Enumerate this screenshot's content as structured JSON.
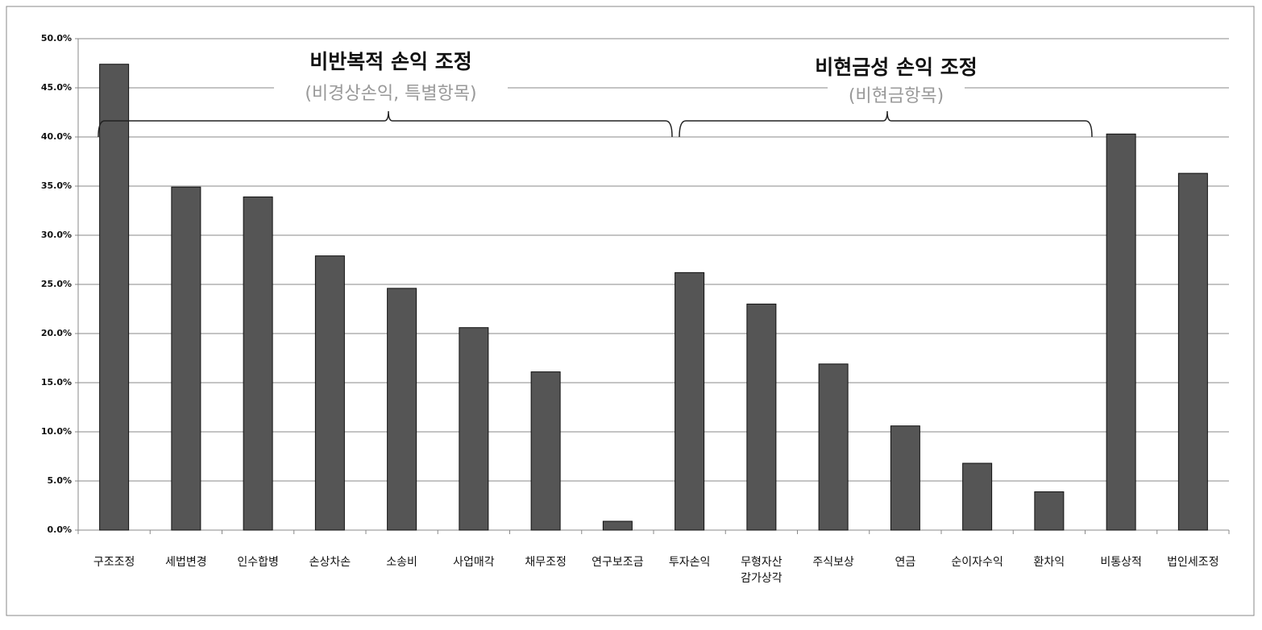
{
  "chart_data": {
    "type": "bar",
    "categories": [
      "구조조정",
      "세법변경",
      "인수합병",
      "손상차손",
      "소송비",
      "사업매각",
      "채무조정",
      "연구보조금",
      "투자손익",
      "무형자산\n감가상각",
      "주식보상",
      "연금",
      "순이자수익",
      "환차익",
      "비통상적",
      "법인세조정"
    ],
    "values": [
      47.4,
      34.9,
      33.9,
      27.9,
      24.6,
      20.6,
      16.1,
      0.9,
      26.2,
      23.0,
      16.9,
      10.6,
      6.8,
      3.9,
      40.3,
      36.3
    ],
    "color": "#555555",
    "ylim": [
      0,
      50
    ],
    "yticks": [
      {
        "value": 0,
        "label": "0.0%"
      },
      {
        "value": 5,
        "label": "5.0%"
      },
      {
        "value": 10,
        "label": "10.0%"
      },
      {
        "value": 15,
        "label": "15.0%"
      },
      {
        "value": 20,
        "label": "20.0%"
      },
      {
        "value": 25,
        "label": "25.0%"
      },
      {
        "value": 30,
        "label": "30.0%"
      },
      {
        "value": 35,
        "label": "35.0%"
      },
      {
        "value": 40,
        "label": "40.0%"
      },
      {
        "value": 45,
        "label": "45.0%"
      },
      {
        "value": 50,
        "label": "50.0%"
      }
    ],
    "grid": true,
    "annotations": [
      {
        "title": "비반복적 손익 조정",
        "subtitle": "(비경상손익, 특별항목)"
      },
      {
        "title": "비현금성 손익 조정",
        "subtitle": "(비현금항목)"
      }
    ]
  }
}
